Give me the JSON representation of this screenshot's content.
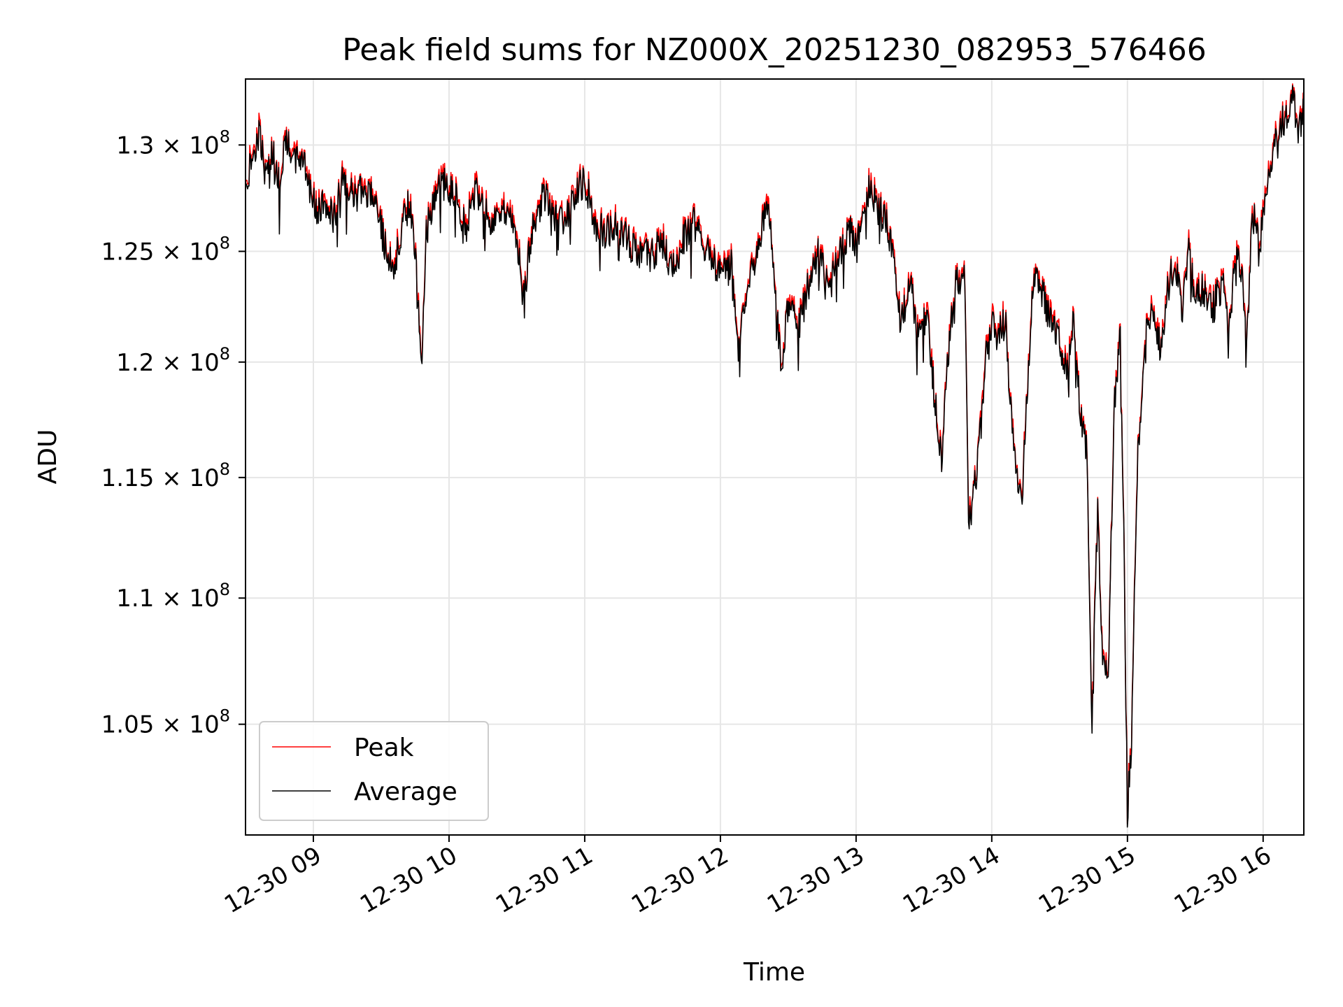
{
  "chart_data": {
    "type": "line",
    "title": "Peak field sums for NZ000X_20251230_082953_576466",
    "xlabel": "Time",
    "ylabel": "ADU",
    "ylim": [
      100800000,
      133200000
    ],
    "xlim_hours": [
      8.5,
      16.3
    ],
    "y_scale": "log",
    "grid": true,
    "legend_position": "lower-left",
    "x_ticks": [
      {
        "hour": 9,
        "label": "12-30 09"
      },
      {
        "hour": 10,
        "label": "12-30 10"
      },
      {
        "hour": 11,
        "label": "12-30 11"
      },
      {
        "hour": 12,
        "label": "12-30 12"
      },
      {
        "hour": 13,
        "label": "12-30 13"
      },
      {
        "hour": 14,
        "label": "12-30 14"
      },
      {
        "hour": 15,
        "label": "12-30 15"
      },
      {
        "hour": 16,
        "label": "12-30 16"
      }
    ],
    "y_ticks": [
      {
        "value": 130000000,
        "mantissa": "1.3",
        "base": "10",
        "exponent": "8"
      },
      {
        "value": 125000000,
        "mantissa": "1.25",
        "base": "10",
        "exponent": "8"
      },
      {
        "value": 120000000,
        "mantissa": "1.2",
        "base": "10",
        "exponent": "8"
      },
      {
        "value": 115000000,
        "mantissa": "1.15",
        "base": "10",
        "exponent": "8"
      },
      {
        "value": 110000000,
        "mantissa": "1.1",
        "base": "10",
        "exponent": "8"
      },
      {
        "value": 105000000,
        "mantissa": "1.05",
        "base": "10",
        "exponent": "8"
      }
    ],
    "series": [
      {
        "name": "Peak",
        "color": "#ff0000",
        "role": "peak"
      },
      {
        "name": "Average",
        "color": "#000000",
        "role": "average"
      }
    ],
    "average_anchor_points": [
      [
        8.5,
        127.8
      ],
      [
        8.55,
        129.5
      ],
      [
        8.6,
        130.5
      ],
      [
        8.65,
        128.4
      ],
      [
        8.7,
        129.8
      ],
      [
        8.75,
        128.0
      ],
      [
        8.8,
        130.3
      ],
      [
        8.85,
        129.0
      ],
      [
        8.92,
        129.6
      ],
      [
        8.98,
        127.7
      ],
      [
        9.03,
        126.7
      ],
      [
        9.1,
        127.4
      ],
      [
        9.15,
        126.5
      ],
      [
        9.22,
        128.6
      ],
      [
        9.3,
        127.5
      ],
      [
        9.38,
        128.0
      ],
      [
        9.45,
        127.2
      ],
      [
        9.5,
        126.0
      ],
      [
        9.55,
        124.6
      ],
      [
        9.6,
        124.3
      ],
      [
        9.65,
        125.9
      ],
      [
        9.7,
        127.2
      ],
      [
        9.75,
        125.4
      ],
      [
        9.8,
        119.9
      ],
      [
        9.83,
        125.8
      ],
      [
        9.9,
        127.6
      ],
      [
        9.97,
        128.2
      ],
      [
        10.05,
        127.5
      ],
      [
        10.12,
        126.2
      ],
      [
        10.2,
        127.7
      ],
      [
        10.3,
        126.4
      ],
      [
        10.4,
        127.1
      ],
      [
        10.5,
        125.5
      ],
      [
        10.55,
        122.8
      ],
      [
        10.62,
        126.4
      ],
      [
        10.7,
        127.6
      ],
      [
        10.78,
        126.6
      ],
      [
        10.85,
        126.2
      ],
      [
        10.92,
        127.7
      ],
      [
        11.0,
        128.3
      ],
      [
        11.08,
        126.3
      ],
      [
        11.15,
        125.8
      ],
      [
        11.22,
        126.2
      ],
      [
        11.3,
        125.7
      ],
      [
        11.4,
        124.7
      ],
      [
        11.5,
        124.9
      ],
      [
        11.58,
        125.4
      ],
      [
        11.65,
        124.1
      ],
      [
        11.72,
        125.5
      ],
      [
        11.8,
        126.3
      ],
      [
        11.9,
        125.0
      ],
      [
        12.0,
        124.0
      ],
      [
        12.08,
        124.3
      ],
      [
        12.13,
        120.6
      ],
      [
        12.18,
        122.7
      ],
      [
        12.25,
        124.5
      ],
      [
        12.3,
        126.0
      ],
      [
        12.35,
        127.0
      ],
      [
        12.4,
        124.0
      ],
      [
        12.45,
        119.0
      ],
      [
        12.5,
        122.8
      ],
      [
        12.58,
        121.5
      ],
      [
        12.65,
        123.5
      ],
      [
        12.72,
        124.8
      ],
      [
        12.8,
        123.4
      ],
      [
        12.88,
        124.7
      ],
      [
        12.95,
        126.0
      ],
      [
        13.0,
        125.0
      ],
      [
        13.05,
        127.0
      ],
      [
        13.1,
        128.1
      ],
      [
        13.15,
        127.0
      ],
      [
        13.22,
        126.4
      ],
      [
        13.28,
        124.4
      ],
      [
        13.33,
        121.6
      ],
      [
        13.4,
        123.7
      ],
      [
        13.45,
        121.1
      ],
      [
        13.52,
        122.0
      ],
      [
        13.58,
        118.4
      ],
      [
        13.63,
        115.8
      ],
      [
        13.68,
        120.3
      ],
      [
        13.73,
        123.8
      ],
      [
        13.8,
        123.6
      ],
      [
        13.83,
        112.8
      ],
      [
        13.9,
        115.7
      ],
      [
        13.95,
        119.9
      ],
      [
        14.0,
        121.5
      ],
      [
        14.05,
        121.2
      ],
      [
        14.1,
        121.9
      ],
      [
        14.15,
        117.0
      ],
      [
        14.22,
        113.8
      ],
      [
        14.28,
        121.0
      ],
      [
        14.32,
        124.4
      ],
      [
        14.38,
        123.0
      ],
      [
        14.45,
        121.5
      ],
      [
        14.5,
        121.1
      ],
      [
        14.55,
        119.5
      ],
      [
        14.6,
        121.8
      ],
      [
        14.65,
        118.0
      ],
      [
        14.7,
        116.0
      ],
      [
        14.74,
        104.8
      ],
      [
        14.78,
        113.5
      ],
      [
        14.82,
        107.5
      ],
      [
        14.86,
        106.4
      ],
      [
        14.9,
        118.0
      ],
      [
        14.95,
        121.3
      ],
      [
        14.98,
        110.0
      ],
      [
        15.0,
        101.0
      ],
      [
        15.04,
        107.0
      ],
      [
        15.08,
        116.5
      ],
      [
        15.13,
        121.0
      ],
      [
        15.18,
        122.5
      ],
      [
        15.25,
        120.5
      ],
      [
        15.3,
        123.4
      ],
      [
        15.35,
        124.7
      ],
      [
        15.4,
        122.1
      ],
      [
        15.45,
        125.6
      ],
      [
        15.5,
        122.6
      ],
      [
        15.55,
        123.4
      ],
      [
        15.62,
        122.2
      ],
      [
        15.7,
        123.6
      ],
      [
        15.75,
        121.6
      ],
      [
        15.8,
        124.9
      ],
      [
        15.85,
        123.9
      ],
      [
        15.88,
        120.6
      ],
      [
        15.92,
        126.8
      ],
      [
        15.98,
        125.6
      ],
      [
        16.03,
        127.9
      ],
      [
        16.08,
        130.0
      ],
      [
        16.12,
        130.8
      ],
      [
        16.17,
        131.4
      ],
      [
        16.22,
        132.3
      ],
      [
        16.26,
        130.8
      ],
      [
        16.3,
        131.6
      ]
    ],
    "legend_entries": [
      "Peak",
      "Average"
    ]
  }
}
